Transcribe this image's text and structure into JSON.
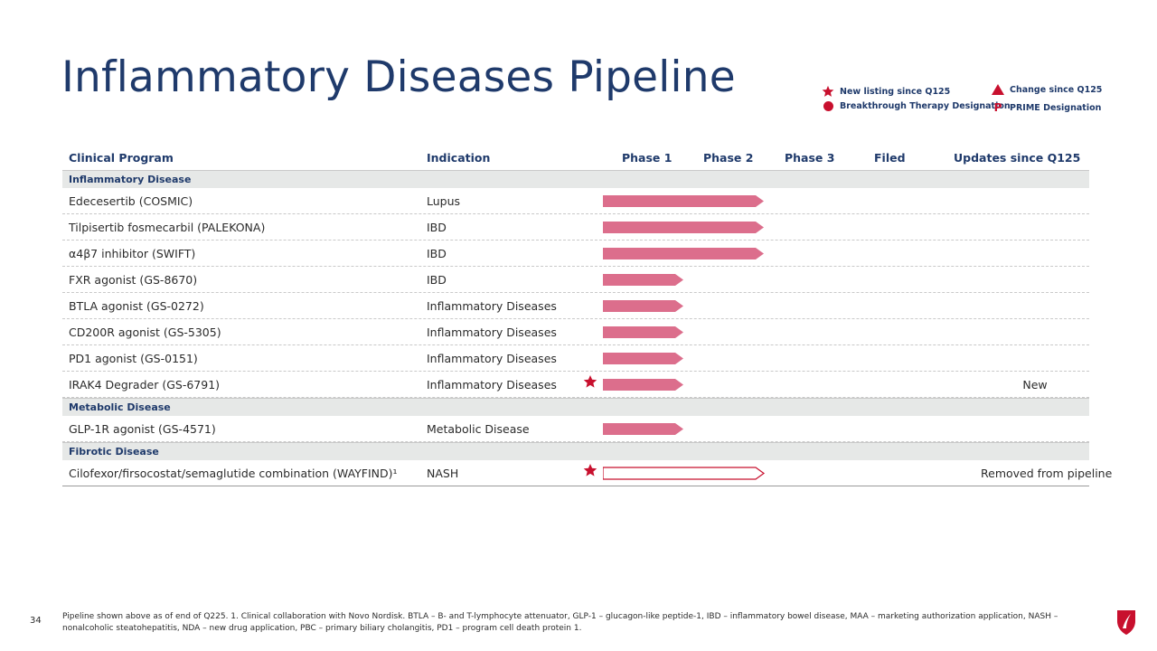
{
  "page": {
    "title": "Inflammatory Diseases Pipeline",
    "page_number": "34",
    "footnote": "Pipeline shown above as of end of Q225. 1. Clinical collaboration with Novo Nordisk. BTLA – B- and T-lymphocyte attenuator, GLP-1 – glucagon-like peptide-1, IBD – inflammatory bowel disease, MAA – marketing authorization application, NASH – nonalcoholic steatohepatitis, NDA – new drug application, PBC – primary biliary cholangitis, PD1 – program cell death protein 1."
  },
  "legend": {
    "new_listing": "New listing since Q125",
    "change": "Change since Q125",
    "breakthrough": "Breakthrough Therapy Designation",
    "prime": "PRIME Designation",
    "prime_symbol": "P"
  },
  "colors": {
    "bar": "#dc6e8c",
    "accent": "#c8102e",
    "navy": "#1f3a6b"
  },
  "table": {
    "headers": {
      "program": "Clinical Program",
      "indication": "Indication",
      "phase1": "Phase 1",
      "phase2": "Phase 2",
      "phase3": "Phase 3",
      "filed": "Filed",
      "updates": "Updates since Q125"
    },
    "sections": [
      {
        "label": "Inflammatory Disease"
      },
      {
        "label": "Metabolic Disease"
      },
      {
        "label": "Fibrotic Disease"
      }
    ],
    "rows": [
      {
        "program": "Edecesertib (COSMIC)",
        "indication": "Lupus",
        "phase": "Phase 2",
        "style": "filled",
        "new": false,
        "update": ""
      },
      {
        "program": "Tilpisertib fosmecarbil (PALEKONA)",
        "indication": "IBD",
        "phase": "Phase 2",
        "style": "filled",
        "new": false,
        "update": ""
      },
      {
        "program": "α4β7 inhibitor (SWIFT)",
        "indication": "IBD",
        "phase": "Phase 2",
        "style": "filled",
        "new": false,
        "update": ""
      },
      {
        "program": "FXR agonist (GS-8670)",
        "indication": "IBD",
        "phase": "Phase 1",
        "style": "filled",
        "new": false,
        "update": ""
      },
      {
        "program": "BTLA agonist (GS-0272)",
        "indication": "Inflammatory Diseases",
        "phase": "Phase 1",
        "style": "filled",
        "new": false,
        "update": ""
      },
      {
        "program": "CD200R agonist (GS-5305)",
        "indication": "Inflammatory Diseases",
        "phase": "Phase 1",
        "style": "filled",
        "new": false,
        "update": ""
      },
      {
        "program": "PD1 agonist (GS-0151)",
        "indication": "Inflammatory Diseases",
        "phase": "Phase 1",
        "style": "filled",
        "new": false,
        "update": ""
      },
      {
        "program": "IRAK4 Degrader (GS-6791)",
        "indication": "Inflammatory Diseases",
        "phase": "Phase 1",
        "style": "filled",
        "new": true,
        "update": "New"
      },
      {
        "program": "GLP-1R agonist (GS-4571)",
        "indication": "Metabolic Disease",
        "phase": "Phase 1",
        "style": "filled",
        "new": false,
        "update": ""
      },
      {
        "program": "Cilofexor/firsocostat/semaglutide combination (WAYFIND)¹",
        "indication": "NASH",
        "phase": "Phase 2",
        "style": "outline",
        "new": true,
        "update": "Removed from pipeline"
      }
    ]
  }
}
